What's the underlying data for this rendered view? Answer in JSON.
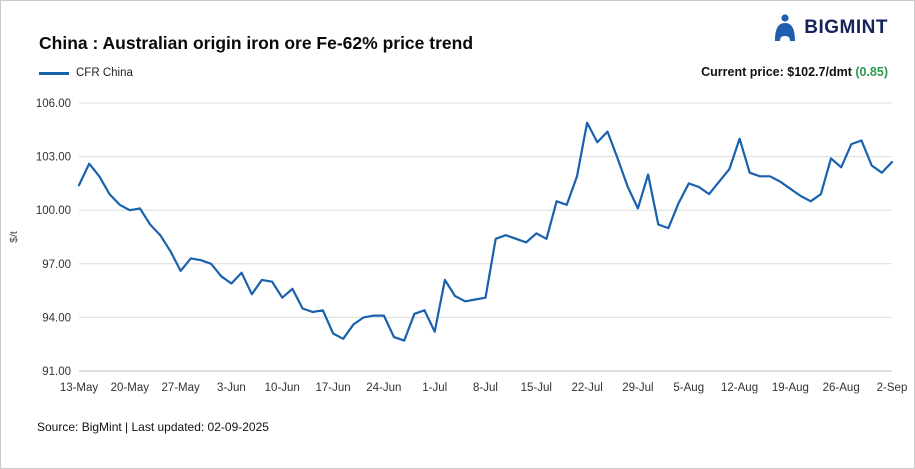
{
  "logo": {
    "text": "BIGMINT",
    "icon": "bigmint-person-icon"
  },
  "header": {
    "title": "China : Australian origin iron ore Fe-62% price trend"
  },
  "legend": {
    "label": "CFR China"
  },
  "current_price": {
    "text": "Current price: $102.7/dmt",
    "change": "(0.85)"
  },
  "footer": {
    "text": "Source: BigMint | Last updated: 02-09-2025"
  },
  "colors": {
    "line": "#1961ac",
    "green": "#2e9b4f",
    "grid": "#dcdcdc",
    "axis": "#bfbfbf",
    "tick_text": "#333333",
    "logo_blue": "#1d5fae",
    "logo_text": "#15235c"
  },
  "chart_data": {
    "type": "line",
    "title": "China : Australian origin iron ore Fe-62% price trend",
    "ylabel": "$/t",
    "xlabel": "",
    "ylim": [
      91,
      106
    ],
    "y_ticks": [
      91,
      94,
      97,
      100,
      103,
      106
    ],
    "grid": "horizontal",
    "legend_position": "top-left",
    "x_tick_labels": [
      "13-May",
      "20-May",
      "27-May",
      "3-Jun",
      "10-Jun",
      "17-Jun",
      "24-Jun",
      "1-Jul",
      "8-Jul",
      "15-Jul",
      "22-Jul",
      "29-Jul",
      "5-Aug",
      "12-Aug",
      "19-Aug",
      "26-Aug",
      "2-Sep"
    ],
    "x_tick_indices": [
      0,
      5,
      10,
      15,
      20,
      25,
      30,
      35,
      40,
      45,
      50,
      55,
      60,
      65,
      70,
      75,
      80
    ],
    "series": [
      {
        "name": "CFR China",
        "values": [
          101.4,
          102.6,
          101.9,
          100.9,
          100.3,
          100.0,
          100.1,
          99.2,
          98.6,
          97.7,
          96.6,
          97.3,
          97.2,
          97.0,
          96.3,
          95.9,
          96.5,
          95.3,
          96.1,
          96.0,
          95.1,
          95.6,
          94.5,
          94.3,
          94.4,
          93.1,
          92.8,
          93.6,
          94.0,
          94.1,
          94.1,
          92.9,
          92.7,
          94.2,
          94.4,
          93.2,
          96.1,
          95.2,
          94.9,
          95.0,
          95.1,
          98.4,
          98.6,
          98.4,
          98.2,
          98.7,
          98.4,
          100.5,
          100.3,
          101.9,
          104.9,
          103.8,
          104.4,
          102.9,
          101.3,
          100.1,
          102.0,
          99.2,
          99.0,
          100.4,
          101.5,
          101.3,
          100.9,
          101.6,
          102.3,
          104.0,
          102.1,
          101.9,
          101.9,
          101.6,
          101.2,
          100.8,
          100.5,
          100.9,
          102.9,
          102.4,
          103.7,
          103.9,
          102.5,
          102.1,
          102.7
        ]
      }
    ]
  }
}
